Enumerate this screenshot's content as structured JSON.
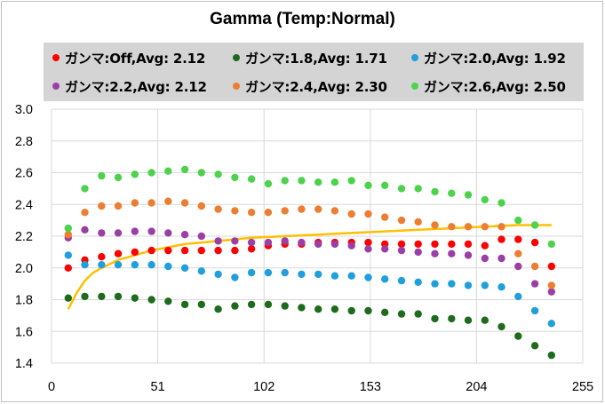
{
  "chart_data": {
    "type": "scatter",
    "title": "Gamma (Temp:Normal)",
    "xlabel": "",
    "ylabel": "",
    "xlim": [
      0,
      255
    ],
    "ylim": [
      1.4,
      3.0
    ],
    "xticks": [
      "0",
      "51",
      "102",
      "153",
      "204",
      "255"
    ],
    "yticks": [
      "1.4",
      "1.6",
      "1.8",
      "2.0",
      "2.2",
      "2.4",
      "2.6",
      "2.8",
      "3.0"
    ],
    "grid": true,
    "legend_position": "top",
    "x": [
      8,
      16,
      24,
      32,
      40,
      48,
      56,
      64,
      72,
      80,
      88,
      96,
      104,
      112,
      120,
      128,
      136,
      144,
      152,
      160,
      168,
      176,
      184,
      192,
      200,
      208,
      216,
      224,
      232,
      240
    ],
    "series": [
      {
        "name": "ガンマ:Off,Avg: 2.12",
        "color": "#ff0000",
        "values": [
          2.0,
          2.05,
          2.07,
          2.09,
          2.1,
          2.11,
          2.11,
          2.11,
          2.11,
          2.11,
          2.11,
          2.12,
          2.14,
          2.15,
          2.15,
          2.16,
          2.16,
          2.16,
          2.16,
          2.15,
          2.15,
          2.15,
          2.15,
          2.15,
          2.15,
          2.14,
          2.18,
          2.18,
          2.16,
          2.01
        ]
      },
      {
        "name": "ガンマ:1.8,Avg: 1.71",
        "color": "#1e6b1e",
        "values": [
          1.81,
          1.82,
          1.82,
          1.82,
          1.81,
          1.8,
          1.79,
          1.77,
          1.77,
          1.74,
          1.76,
          1.77,
          1.77,
          1.76,
          1.75,
          1.74,
          1.74,
          1.73,
          1.73,
          1.72,
          1.71,
          1.71,
          1.68,
          1.68,
          1.67,
          1.67,
          1.63,
          1.57,
          1.51,
          1.45
        ]
      },
      {
        "name": "ガンマ:2.0,Avg: 1.92",
        "color": "#1f9fdc",
        "values": [
          2.08,
          2.02,
          2.02,
          2.02,
          2.02,
          2.02,
          2.01,
          2.0,
          1.98,
          1.96,
          1.94,
          1.97,
          1.97,
          1.97,
          1.96,
          1.96,
          1.95,
          1.95,
          1.94,
          1.93,
          1.92,
          1.91,
          1.9,
          1.9,
          1.89,
          1.89,
          1.88,
          1.82,
          1.73,
          1.65
        ]
      },
      {
        "name": "ガンマ:2.2,Avg: 2.12",
        "color": "#9b3fa6",
        "values": [
          2.19,
          2.24,
          2.22,
          2.22,
          2.23,
          2.23,
          2.22,
          2.21,
          2.2,
          2.17,
          2.17,
          2.16,
          2.16,
          2.17,
          2.16,
          2.15,
          2.15,
          2.14,
          2.12,
          2.12,
          2.11,
          2.1,
          2.09,
          2.09,
          2.08,
          2.06,
          2.06,
          2.01,
          1.9,
          1.85
        ]
      },
      {
        "name": "ガンマ:2.4,Avg: 2.30",
        "color": "#ed7d31",
        "values": [
          2.21,
          2.35,
          2.39,
          2.39,
          2.41,
          2.41,
          2.42,
          2.41,
          2.39,
          2.37,
          2.36,
          2.35,
          2.35,
          2.36,
          2.37,
          2.37,
          2.36,
          2.34,
          2.34,
          2.32,
          2.3,
          2.29,
          2.27,
          2.26,
          2.26,
          2.26,
          2.26,
          2.09,
          2.01,
          1.89
        ]
      },
      {
        "name": "ガンマ:2.6,Avg: 2.50",
        "color": "#4cd34c",
        "values": [
          2.25,
          2.5,
          2.58,
          2.57,
          2.59,
          2.6,
          2.61,
          2.62,
          2.6,
          2.59,
          2.57,
          2.56,
          2.53,
          2.55,
          2.55,
          2.54,
          2.54,
          2.55,
          2.52,
          2.52,
          2.5,
          2.5,
          2.48,
          2.47,
          2.46,
          2.43,
          2.41,
          2.3,
          2.27,
          2.15
        ]
      }
    ],
    "reference_curve": {
      "color": "#ffc000",
      "x": [
        8,
        12,
        16,
        20,
        24,
        32,
        40,
        48,
        56,
        64,
        72,
        80,
        96,
        112,
        128,
        144,
        160,
        176,
        192,
        208,
        224,
        240
      ],
      "values": [
        1.74,
        1.84,
        1.92,
        1.97,
        2.0,
        2.05,
        2.08,
        2.11,
        2.13,
        2.15,
        2.16,
        2.17,
        2.19,
        2.2,
        2.21,
        2.22,
        2.23,
        2.24,
        2.25,
        2.26,
        2.27,
        2.27
      ]
    }
  }
}
